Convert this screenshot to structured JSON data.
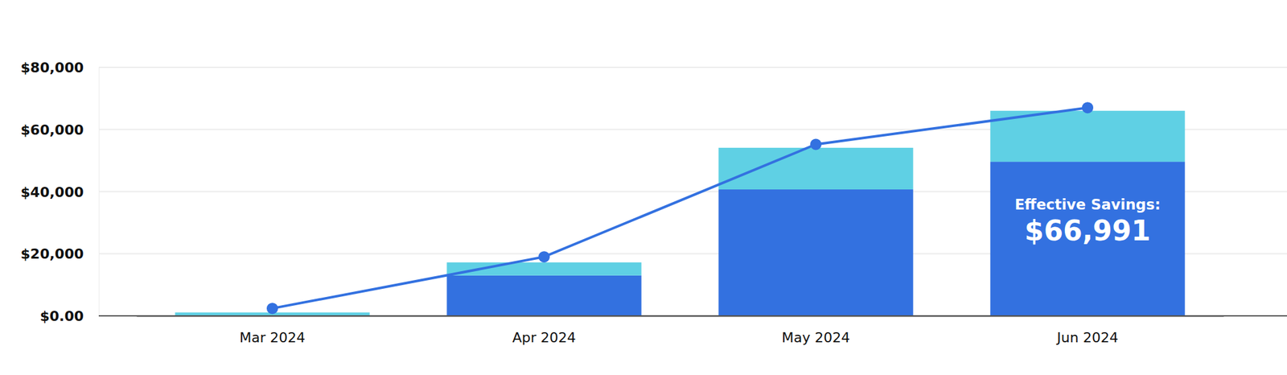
{
  "chart_data": {
    "type": "bar",
    "stacked": true,
    "grid": true,
    "categories": [
      "Mar 2024",
      "Apr 2024",
      "May 2024",
      "Jun 2024"
    ],
    "series": [
      {
        "type": "bar",
        "color": "#3371E0",
        "values": [
          0,
          13000,
          40700,
          49600
        ]
      },
      {
        "type": "bar",
        "color": "#5FD0E4",
        "values": [
          1100,
          4200,
          13400,
          16400
        ]
      },
      {
        "type": "line",
        "color": "#3371E0",
        "marker": "circle",
        "values": [
          2400,
          19000,
          55200,
          66991
        ]
      }
    ],
    "ylim": [
      0,
      80000
    ],
    "yticks": [
      {
        "value": 0,
        "label": "$0.00"
      },
      {
        "value": 20000,
        "label": "$20,000"
      },
      {
        "value": 40000,
        "label": "$40,000"
      },
      {
        "value": 60000,
        "label": "$60,000"
      },
      {
        "value": 80000,
        "label": "$80,000"
      }
    ],
    "annotations": [
      "Effective Savings:",
      "$66,991"
    ]
  }
}
